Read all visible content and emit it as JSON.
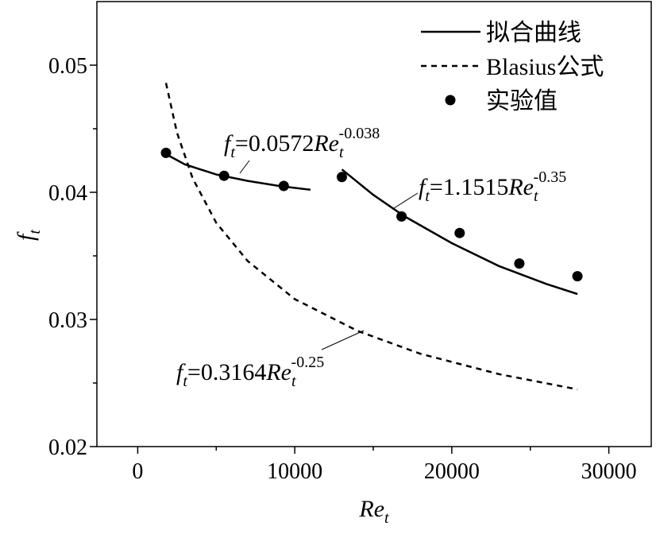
{
  "chart_data": {
    "type": "line",
    "x_label": "Re",
    "x_label_sub": "t",
    "y_label": "f",
    "y_label_sub": "t",
    "xlim": [
      -2600,
      32700
    ],
    "xticks": [
      0,
      10000,
      20000,
      30000
    ],
    "xminorticks": [
      5000,
      15000,
      25000
    ],
    "ylim": [
      0.02,
      0.055
    ],
    "yticks": [
      0.02,
      0.03,
      0.04,
      0.05
    ],
    "yminorticks": [
      0.025,
      0.035,
      0.045
    ],
    "legend": "upper right",
    "series": [
      {
        "name": "拟合曲线",
        "color": "#000000",
        "style": "solid",
        "x": [
          1800,
          3000,
          5000,
          7000,
          9000,
          11000,
          null,
          13000,
          15000,
          17000,
          20000,
          23000,
          26000,
          28000
        ],
        "values": [
          0.043,
          0.0422,
          0.0414,
          0.0409,
          0.0405,
          0.0402,
          null,
          0.0418,
          0.0398,
          0.0381,
          0.036,
          0.0342,
          0.0328,
          0.032
        ]
      },
      {
        "name": "Blasius公式",
        "color": "#000000",
        "style": "dashed",
        "x": [
          1800,
          2500,
          3500,
          5000,
          7000,
          10000,
          14000,
          18000,
          23000,
          28000
        ],
        "values": [
          0.0486,
          0.0447,
          0.0411,
          0.0376,
          0.0346,
          0.0316,
          0.0291,
          0.0273,
          0.0257,
          0.0245
        ]
      },
      {
        "name": "实验值",
        "color": "#000000",
        "style": "marker",
        "x": [
          1800,
          5500,
          9300,
          13000,
          16800,
          20500,
          24300,
          28000
        ],
        "values": [
          0.0431,
          0.0413,
          0.0405,
          0.0412,
          0.0381,
          0.0368,
          0.0344,
          0.0334
        ]
      }
    ],
    "annotations": [
      {
        "lhs": "f",
        "lhs_sub": "t",
        "eq": "=0.0572",
        "var": "Re",
        "var_sub": "t",
        "exp": "-0.038"
      },
      {
        "lhs": "f",
        "lhs_sub": "t",
        "eq": "=1.1515",
        "var": "Re",
        "var_sub": "t",
        "exp": "-0.35"
      },
      {
        "lhs": "f",
        "lhs_sub": "t",
        "eq": "=0.3164",
        "var": "Re",
        "var_sub": "t",
        "exp": "-0.25"
      }
    ]
  }
}
